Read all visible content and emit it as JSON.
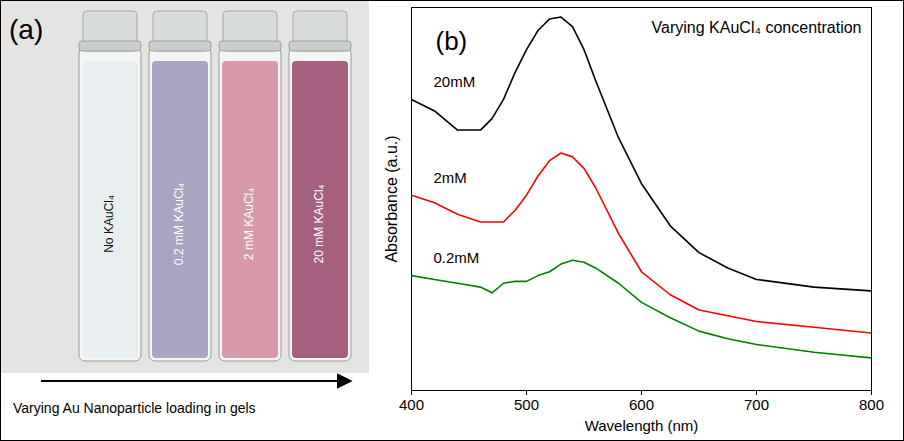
{
  "figure_a": {
    "panel_label": "(a)",
    "vials": [
      {
        "label": "No KAuCl₄",
        "color": "#e9eff0"
      },
      {
        "label": "0.2 mM KAuCl₄",
        "color": "#aaa3c2"
      },
      {
        "label": "2 mM KAuCl₄",
        "color": "#d79aab"
      },
      {
        "label": "20 mM KAuCl₄",
        "color": "#a6607f"
      }
    ],
    "caption": "Varying Au Nanoparticle loading in gels"
  },
  "chart_data": {
    "type": "line",
    "panel_label": "(b)",
    "title": "Varying KAuCl₄ concentration",
    "x_label": "Wavelength (nm)",
    "y_label": "Absorbance (a.u.)",
    "x": [
      400,
      420,
      440,
      460,
      470,
      480,
      490,
      500,
      510,
      520,
      530,
      540,
      550,
      560,
      580,
      600,
      625,
      650,
      675,
      700,
      750,
      800
    ],
    "series": [
      {
        "name": "20mM",
        "color": "#000000",
        "values": [
          0.76,
          0.73,
          0.68,
          0.68,
          0.71,
          0.76,
          0.83,
          0.89,
          0.94,
          0.97,
          0.975,
          0.95,
          0.89,
          0.81,
          0.66,
          0.54,
          0.43,
          0.36,
          0.32,
          0.29,
          0.27,
          0.26
        ]
      },
      {
        "name": "2mM",
        "color": "#ff0000",
        "values": [
          0.51,
          0.49,
          0.46,
          0.44,
          0.44,
          0.44,
          0.47,
          0.51,
          0.56,
          0.6,
          0.62,
          0.61,
          0.58,
          0.53,
          0.41,
          0.31,
          0.25,
          0.21,
          0.195,
          0.18,
          0.165,
          0.15
        ]
      },
      {
        "name": "0.2mM",
        "color": "#008000",
        "values": [
          0.3,
          0.29,
          0.28,
          0.27,
          0.255,
          0.28,
          0.285,
          0.285,
          0.3,
          0.31,
          0.33,
          0.34,
          0.335,
          0.32,
          0.28,
          0.23,
          0.19,
          0.155,
          0.135,
          0.12,
          0.1,
          0.085
        ]
      }
    ],
    "xlim": [
      400,
      800
    ],
    "xticks": [
      400,
      500,
      600,
      700,
      800
    ],
    "ylim": [
      0,
      1
    ],
    "yticks": [],
    "tick_labels": "x",
    "grid": false
  }
}
